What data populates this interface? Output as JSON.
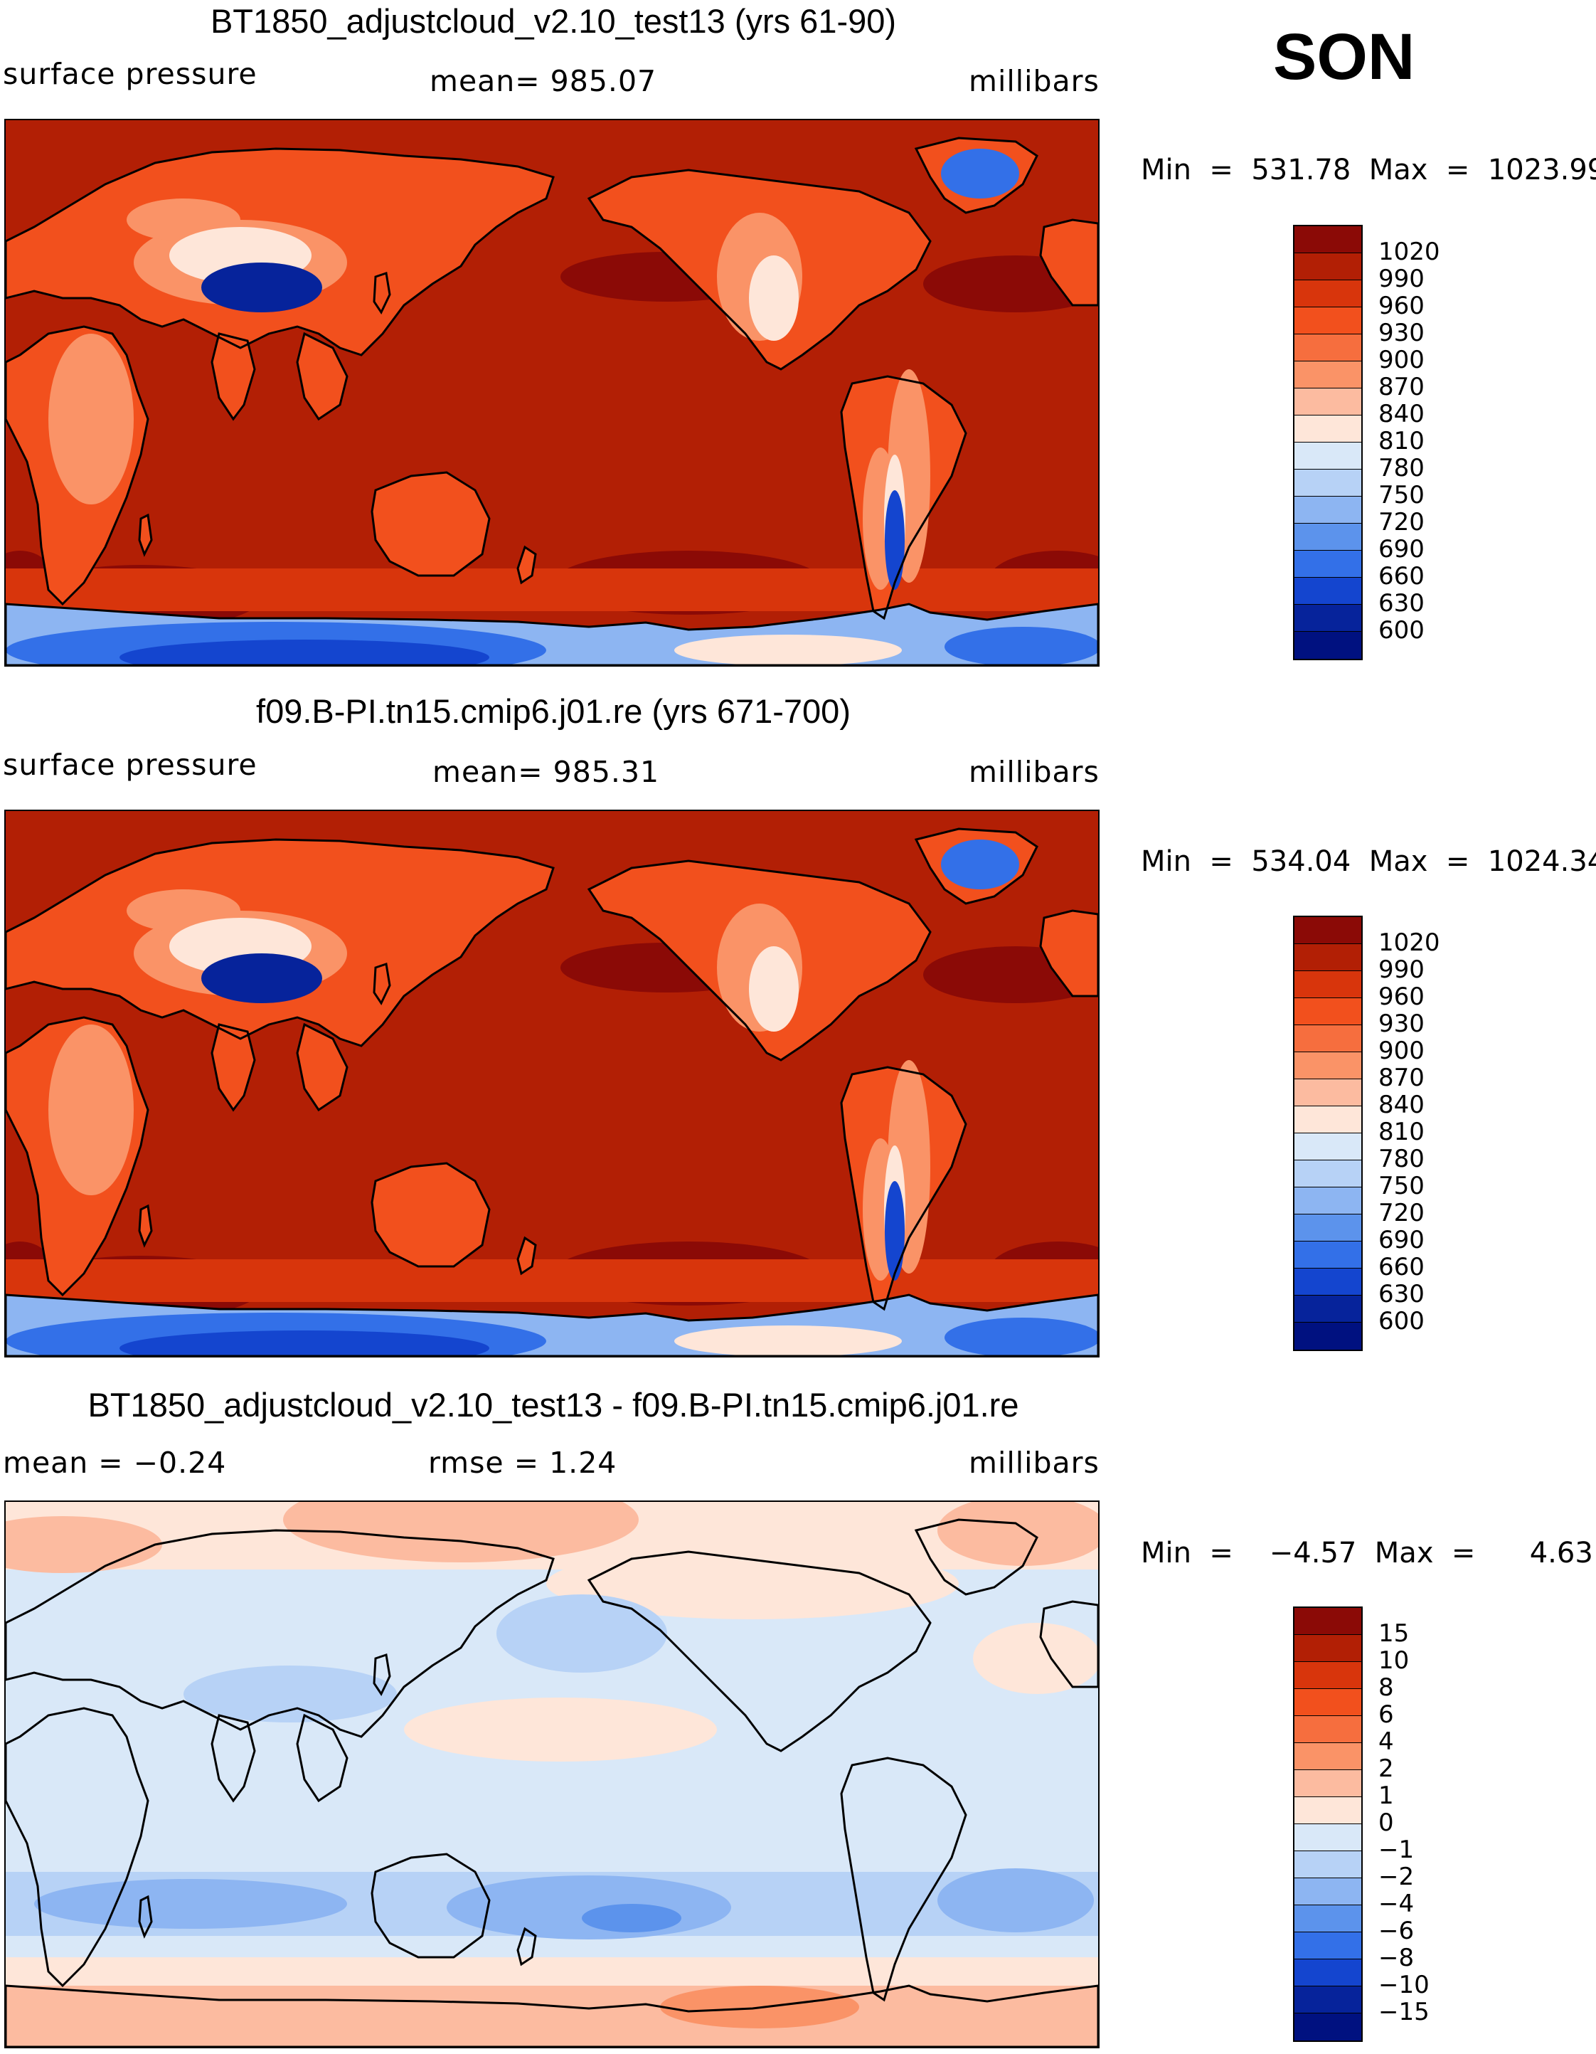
{
  "season": "SON",
  "panels": [
    {
      "title": "BT1850_adjustcloud_v2.10_test13 (yrs 61-90)",
      "left_label": "surface pressure",
      "center_label": "mean=  985.07",
      "units": "millibars",
      "minmax": "Min  =  531.78  Max  =  1023.99",
      "colorbar": {
        "levels": [
          "1020",
          "990",
          "960",
          "930",
          "900",
          "870",
          "840",
          "810",
          "780",
          "750",
          "720",
          "690",
          "660",
          "630",
          "600"
        ],
        "colors": [
          "#8b0a06",
          "#b21f05",
          "#d8350c",
          "#f2501d",
          "#f66e3e",
          "#fa9367",
          "#fcbba0",
          "#fee6d9",
          "#d9e8f8",
          "#b7d2f6",
          "#8db5f2",
          "#5c93ec",
          "#3370e8",
          "#1445cf",
          "#06239b",
          "#001180"
        ]
      }
    },
    {
      "title": "f09.B-PI.tn15.cmip6.j01.re (yrs 671-700)",
      "left_label": "surface pressure",
      "center_label": "mean=  985.31",
      "units": "millibars",
      "minmax": "Min  =  534.04  Max  =  1024.34",
      "colorbar": {
        "levels": [
          "1020",
          "990",
          "960",
          "930",
          "900",
          "870",
          "840",
          "810",
          "780",
          "750",
          "720",
          "690",
          "660",
          "630",
          "600"
        ],
        "colors": [
          "#8b0a06",
          "#b21f05",
          "#d8350c",
          "#f2501d",
          "#f66e3e",
          "#fa9367",
          "#fcbba0",
          "#fee6d9",
          "#d9e8f8",
          "#b7d2f6",
          "#8db5f2",
          "#5c93ec",
          "#3370e8",
          "#1445cf",
          "#06239b",
          "#001180"
        ]
      }
    },
    {
      "title": "BT1850_adjustcloud_v2.10_test13 - f09.B-PI.tn15.cmip6.j01.re",
      "left_label": "mean  =    −0.24",
      "center_label": "rmse  =     1.24",
      "units": "millibars",
      "minmax": "Min  =    −4.57  Max  =      4.63",
      "colorbar": {
        "levels": [
          "15",
          "10",
          "8",
          "6",
          "4",
          "2",
          "1",
          "0",
          "−1",
          "−2",
          "−4",
          "−6",
          "−8",
          "−10",
          "−15"
        ],
        "colors": [
          "#8b0a06",
          "#b21f05",
          "#d8350c",
          "#f2501d",
          "#f66e3e",
          "#fa9367",
          "#fcbba0",
          "#fee6d9",
          "#d9e8f8",
          "#b7d2f6",
          "#8db5f2",
          "#5c93ec",
          "#3370e8",
          "#1445cf",
          "#06239b",
          "#001180"
        ]
      }
    }
  ],
  "map_colors": {
    "ocean": "#b21f05",
    "high": "#8b0a06",
    "southern_band": "#d8350c",
    "antarctic_deep": "#1445cf",
    "antarctic_mid": "#3370e8",
    "antarctic_light": "#8db5f2",
    "land_mid": "#f2501d",
    "land_light": "#fa9367",
    "land_pale": "#fee6d9",
    "plateau": "#06239b",
    "diff_base": "#d9e8f8",
    "diff_neg": "#b7d2f6",
    "diff_neg_strong": "#8db5f2",
    "diff_pos": "#fee6d9",
    "diff_pos_strong": "#fcbba0",
    "diff_pos_more": "#fa9367"
  }
}
